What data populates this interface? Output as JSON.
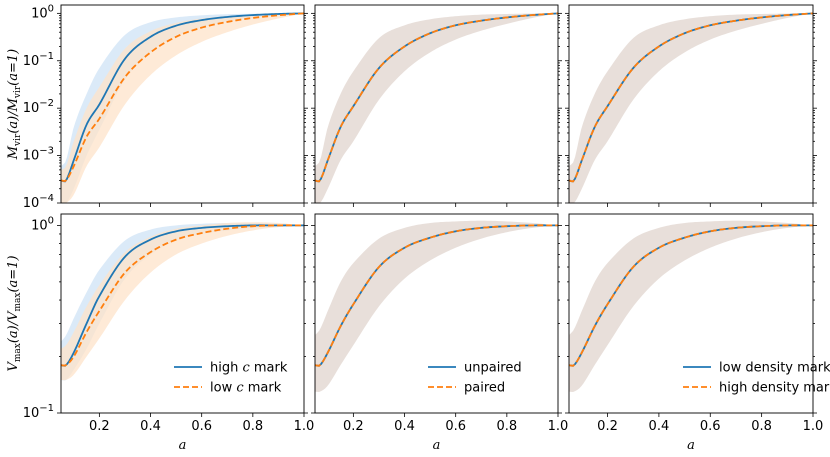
{
  "figure": {
    "xlabel": "a",
    "top_ylabel": "M_vir(a)/M_vir(a=1)",
    "bottom_ylabel": "V_max(a)/V_max(a=1)",
    "x_ticks": [
      "0.2",
      "0.4",
      "0.6",
      "0.8",
      "1.0"
    ],
    "top_y_ticks": [
      "10^0",
      "10^-1",
      "10^-2",
      "10^-3",
      "10^-4"
    ],
    "bottom_y_ticks": [
      "10^0",
      "10^-1"
    ]
  },
  "colors": {
    "series_a": "#1f77b4",
    "series_b": "#ff7f0e",
    "band_a": "#cfe3f5",
    "band_b": "#fde3c9",
    "band_shared": "#e6dcd6"
  },
  "chart_data": [
    {
      "type": "line",
      "panel": "top-left",
      "xlabel": "",
      "ylabel": "M_vir(a)/M_vir(a=1)",
      "yscale": "log",
      "xlim": [
        0.05,
        1.0
      ],
      "ylim": [
        0.0001,
        1.5
      ],
      "x": [
        0.05,
        0.07,
        0.1,
        0.15,
        0.2,
        0.3,
        0.4,
        0.5,
        0.6,
        0.7,
        0.8,
        0.9,
        1.0
      ],
      "series": [
        {
          "name": "high c mark",
          "style": "solid",
          "values": [
            0.0003,
            0.0003,
            0.0008,
            0.0045,
            0.012,
            0.11,
            0.32,
            0.55,
            0.72,
            0.84,
            0.92,
            0.97,
            1.0
          ],
          "band_lo": [
            0.0001,
            0.0001,
            0.0002,
            0.001,
            0.0035,
            0.04,
            0.15,
            0.32,
            0.5,
            0.66,
            0.8,
            0.91,
            1.0
          ],
          "band_hi": [
            0.0006,
            0.0008,
            0.004,
            0.02,
            0.07,
            0.35,
            0.65,
            0.82,
            0.91,
            0.96,
            0.98,
            0.99,
            1.0
          ]
        },
        {
          "name": "low c mark",
          "style": "dashed",
          "values": [
            0.0003,
            0.0003,
            0.0006,
            0.0025,
            0.006,
            0.045,
            0.15,
            0.32,
            0.5,
            0.66,
            0.8,
            0.91,
            1.0
          ],
          "band_lo": [
            0.0001,
            0.0001,
            0.00015,
            0.0006,
            0.0015,
            0.012,
            0.05,
            0.13,
            0.25,
            0.4,
            0.58,
            0.78,
            1.0
          ],
          "band_hi": [
            0.0005,
            0.0006,
            0.002,
            0.01,
            0.028,
            0.18,
            0.42,
            0.63,
            0.78,
            0.88,
            0.94,
            0.98,
            1.0
          ]
        }
      ]
    },
    {
      "type": "line",
      "panel": "top-middle",
      "xlabel": "",
      "ylabel": "",
      "yscale": "log",
      "xlim": [
        0.05,
        1.0
      ],
      "ylim": [
        0.0001,
        1.5
      ],
      "x": [
        0.05,
        0.07,
        0.1,
        0.15,
        0.2,
        0.3,
        0.4,
        0.5,
        0.6,
        0.7,
        0.8,
        0.9,
        1.0
      ],
      "series": [
        {
          "name": "unpaired",
          "style": "solid",
          "values": [
            0.0003,
            0.0003,
            0.0008,
            0.004,
            0.011,
            0.07,
            0.2,
            0.38,
            0.56,
            0.7,
            0.82,
            0.92,
            1.0
          ],
          "band_lo": [
            0.0001,
            0.0001,
            0.0002,
            0.0008,
            0.002,
            0.015,
            0.06,
            0.15,
            0.28,
            0.43,
            0.6,
            0.8,
            1.0
          ],
          "band_hi": [
            0.0006,
            0.0008,
            0.004,
            0.02,
            0.06,
            0.3,
            0.56,
            0.75,
            0.87,
            0.94,
            0.97,
            0.99,
            1.0
          ]
        },
        {
          "name": "paired",
          "style": "dashed",
          "values": [
            0.0003,
            0.0003,
            0.0008,
            0.004,
            0.011,
            0.07,
            0.2,
            0.38,
            0.56,
            0.7,
            0.82,
            0.92,
            1.0
          ],
          "band_lo": [
            0.0001,
            0.0001,
            0.0002,
            0.0008,
            0.002,
            0.015,
            0.06,
            0.15,
            0.28,
            0.43,
            0.6,
            0.8,
            1.0
          ],
          "band_hi": [
            0.0006,
            0.0008,
            0.004,
            0.02,
            0.06,
            0.3,
            0.56,
            0.75,
            0.87,
            0.94,
            0.97,
            0.99,
            1.0
          ]
        }
      ]
    },
    {
      "type": "line",
      "panel": "top-right",
      "xlabel": "",
      "ylabel": "",
      "yscale": "log",
      "xlim": [
        0.05,
        1.0
      ],
      "ylim": [
        0.0001,
        1.5
      ],
      "x": [
        0.05,
        0.07,
        0.1,
        0.15,
        0.2,
        0.3,
        0.4,
        0.5,
        0.6,
        0.7,
        0.8,
        0.9,
        1.0
      ],
      "series": [
        {
          "name": "low density mark",
          "style": "solid",
          "values": [
            0.0003,
            0.0003,
            0.0008,
            0.004,
            0.011,
            0.07,
            0.2,
            0.38,
            0.56,
            0.7,
            0.82,
            0.92,
            1.0
          ],
          "band_lo": [
            0.0001,
            0.0001,
            0.0002,
            0.0008,
            0.002,
            0.015,
            0.06,
            0.15,
            0.28,
            0.43,
            0.6,
            0.8,
            1.0
          ],
          "band_hi": [
            0.0006,
            0.0008,
            0.004,
            0.02,
            0.06,
            0.3,
            0.56,
            0.75,
            0.87,
            0.94,
            0.97,
            0.99,
            1.0
          ]
        },
        {
          "name": "high density mark",
          "style": "dashed",
          "values": [
            0.0003,
            0.0003,
            0.0008,
            0.004,
            0.011,
            0.07,
            0.2,
            0.38,
            0.56,
            0.7,
            0.82,
            0.92,
            1.0
          ],
          "band_lo": [
            0.0001,
            0.0001,
            0.0002,
            0.0008,
            0.002,
            0.015,
            0.06,
            0.15,
            0.28,
            0.43,
            0.6,
            0.8,
            1.0
          ],
          "band_hi": [
            0.0006,
            0.0008,
            0.004,
            0.02,
            0.06,
            0.3,
            0.56,
            0.75,
            0.87,
            0.94,
            0.97,
            0.99,
            1.0
          ]
        }
      ]
    },
    {
      "type": "line",
      "panel": "bottom-left",
      "xlabel": "a",
      "ylabel": "V_max(a)/V_max(a=1)",
      "yscale": "log",
      "xlim": [
        0.05,
        1.0
      ],
      "ylim": [
        0.1,
        1.15
      ],
      "legend": "lower-right",
      "x": [
        0.05,
        0.07,
        0.1,
        0.15,
        0.2,
        0.3,
        0.4,
        0.5,
        0.6,
        0.7,
        0.8,
        0.9,
        1.0
      ],
      "series": [
        {
          "name": "high c mark",
          "style": "solid",
          "values": [
            0.18,
            0.18,
            0.21,
            0.3,
            0.42,
            0.68,
            0.84,
            0.93,
            0.97,
            0.99,
            1.0,
            1.0,
            1.0
          ],
          "band_lo": [
            0.15,
            0.15,
            0.17,
            0.22,
            0.3,
            0.52,
            0.7,
            0.83,
            0.9,
            0.94,
            0.97,
            0.98,
            1.0
          ],
          "band_hi": [
            0.24,
            0.26,
            0.32,
            0.44,
            0.58,
            0.83,
            0.95,
            1.0,
            1.02,
            1.03,
            1.03,
            1.02,
            1.0
          ]
        },
        {
          "name": "low c mark",
          "style": "dashed",
          "values": [
            0.18,
            0.18,
            0.2,
            0.27,
            0.35,
            0.56,
            0.72,
            0.84,
            0.91,
            0.96,
            0.99,
            1.0,
            1.0
          ],
          "band_lo": [
            0.15,
            0.15,
            0.16,
            0.2,
            0.25,
            0.4,
            0.56,
            0.7,
            0.8,
            0.88,
            0.94,
            0.98,
            1.0
          ],
          "band_hi": [
            0.22,
            0.23,
            0.27,
            0.37,
            0.48,
            0.72,
            0.87,
            0.96,
            1.0,
            1.03,
            1.04,
            1.03,
            1.0
          ]
        }
      ]
    },
    {
      "type": "line",
      "panel": "bottom-middle",
      "xlabel": "a",
      "ylabel": "",
      "yscale": "log",
      "xlim": [
        0.05,
        1.0
      ],
      "ylim": [
        0.1,
        1.15
      ],
      "legend": "lower-right",
      "x": [
        0.05,
        0.07,
        0.1,
        0.15,
        0.2,
        0.3,
        0.4,
        0.5,
        0.6,
        0.7,
        0.8,
        0.9,
        1.0
      ],
      "series": [
        {
          "name": "unpaired",
          "style": "solid",
          "values": [
            0.18,
            0.18,
            0.21,
            0.29,
            0.38,
            0.6,
            0.76,
            0.86,
            0.93,
            0.97,
            0.99,
            1.0,
            1.0
          ],
          "band_lo": [
            0.13,
            0.13,
            0.14,
            0.18,
            0.23,
            0.37,
            0.52,
            0.65,
            0.76,
            0.85,
            0.92,
            0.97,
            1.0
          ],
          "band_hi": [
            0.26,
            0.28,
            0.35,
            0.5,
            0.63,
            0.85,
            0.97,
            1.03,
            1.05,
            1.06,
            1.05,
            1.03,
            1.0
          ]
        },
        {
          "name": "paired",
          "style": "dashed",
          "values": [
            0.18,
            0.18,
            0.21,
            0.29,
            0.38,
            0.6,
            0.76,
            0.86,
            0.93,
            0.97,
            0.99,
            1.0,
            1.0
          ],
          "band_lo": [
            0.13,
            0.13,
            0.14,
            0.18,
            0.23,
            0.37,
            0.52,
            0.65,
            0.76,
            0.85,
            0.92,
            0.97,
            1.0
          ],
          "band_hi": [
            0.26,
            0.28,
            0.35,
            0.5,
            0.63,
            0.85,
            0.97,
            1.03,
            1.05,
            1.06,
            1.05,
            1.03,
            1.0
          ]
        }
      ]
    },
    {
      "type": "line",
      "panel": "bottom-right",
      "xlabel": "a",
      "ylabel": "",
      "yscale": "log",
      "xlim": [
        0.05,
        1.0
      ],
      "ylim": [
        0.1,
        1.15
      ],
      "legend": "lower-right",
      "x": [
        0.05,
        0.07,
        0.1,
        0.15,
        0.2,
        0.3,
        0.4,
        0.5,
        0.6,
        0.7,
        0.8,
        0.9,
        1.0
      ],
      "series": [
        {
          "name": "low density mark",
          "style": "solid",
          "values": [
            0.18,
            0.18,
            0.21,
            0.29,
            0.38,
            0.6,
            0.76,
            0.86,
            0.93,
            0.97,
            0.99,
            1.0,
            1.0
          ],
          "band_lo": [
            0.13,
            0.13,
            0.14,
            0.18,
            0.23,
            0.37,
            0.52,
            0.65,
            0.76,
            0.85,
            0.92,
            0.97,
            1.0
          ],
          "band_hi": [
            0.26,
            0.28,
            0.35,
            0.5,
            0.63,
            0.85,
            0.97,
            1.03,
            1.05,
            1.06,
            1.05,
            1.03,
            1.0
          ]
        },
        {
          "name": "high density mark",
          "style": "dashed",
          "values": [
            0.18,
            0.18,
            0.21,
            0.29,
            0.38,
            0.6,
            0.76,
            0.86,
            0.93,
            0.97,
            0.99,
            1.0,
            1.0
          ],
          "band_lo": [
            0.13,
            0.13,
            0.14,
            0.18,
            0.23,
            0.37,
            0.52,
            0.65,
            0.76,
            0.85,
            0.92,
            0.97,
            1.0
          ],
          "band_hi": [
            0.26,
            0.28,
            0.35,
            0.5,
            0.63,
            0.85,
            0.97,
            1.03,
            1.05,
            1.06,
            1.05,
            1.03,
            1.0
          ]
        }
      ]
    }
  ]
}
